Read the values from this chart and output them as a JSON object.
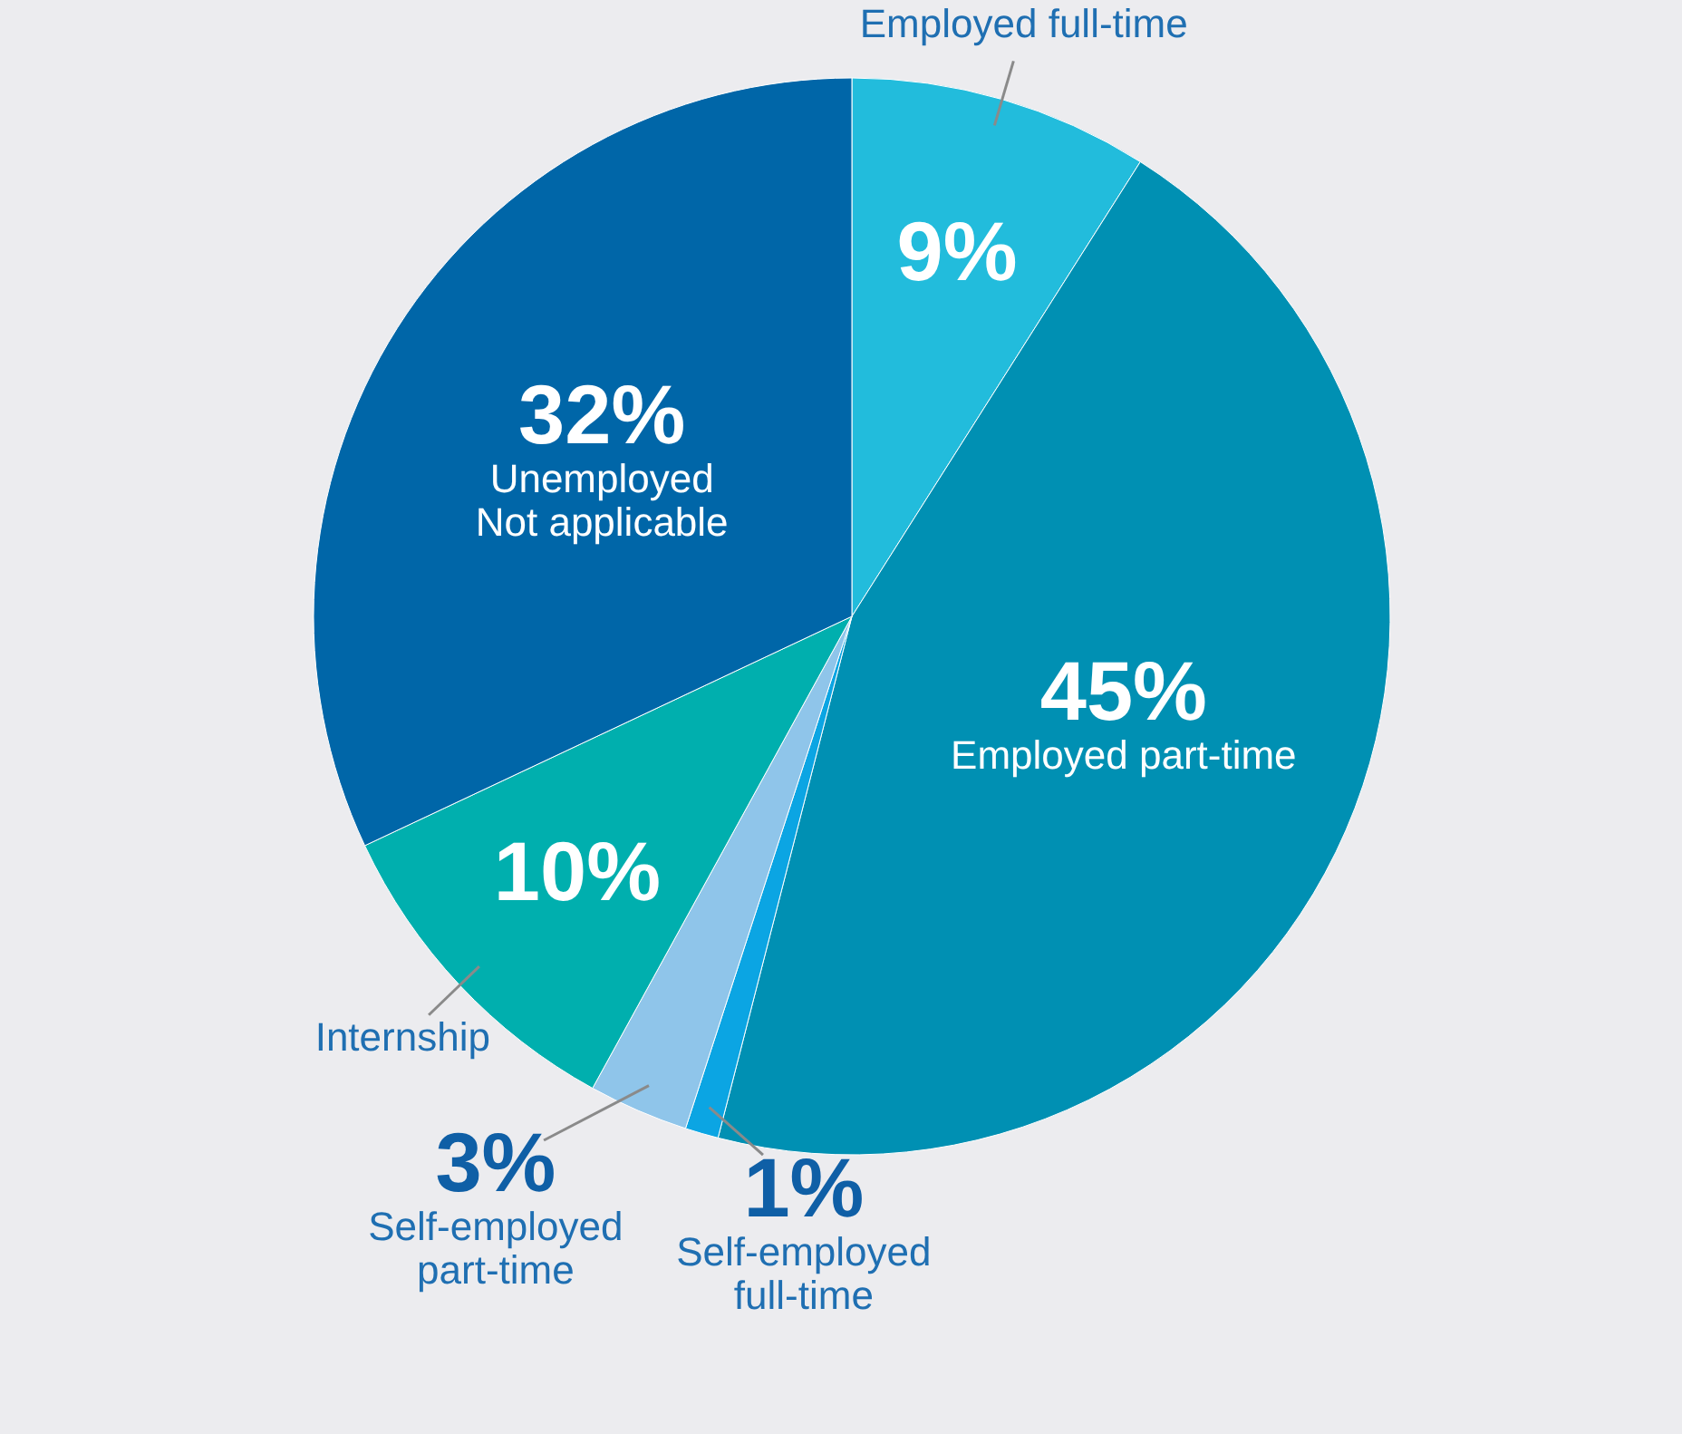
{
  "chart_data": {
    "type": "pie",
    "categories": [
      "Employed full-time",
      "Employed part-time",
      "Self-employed full-time",
      "Self-employed part-time",
      "Internship",
      "Unemployed\nNot applicable"
    ],
    "values": [
      9,
      45,
      1,
      3,
      10,
      32
    ],
    "colors": [
      "#22bcdc",
      "#0090b3",
      "#0ba5e3",
      "#8fc5ea",
      "#00afae",
      "#0066a8"
    ],
    "value_labels": [
      "9%",
      "45%",
      "1%",
      "3%",
      "10%",
      "32%"
    ]
  }
}
